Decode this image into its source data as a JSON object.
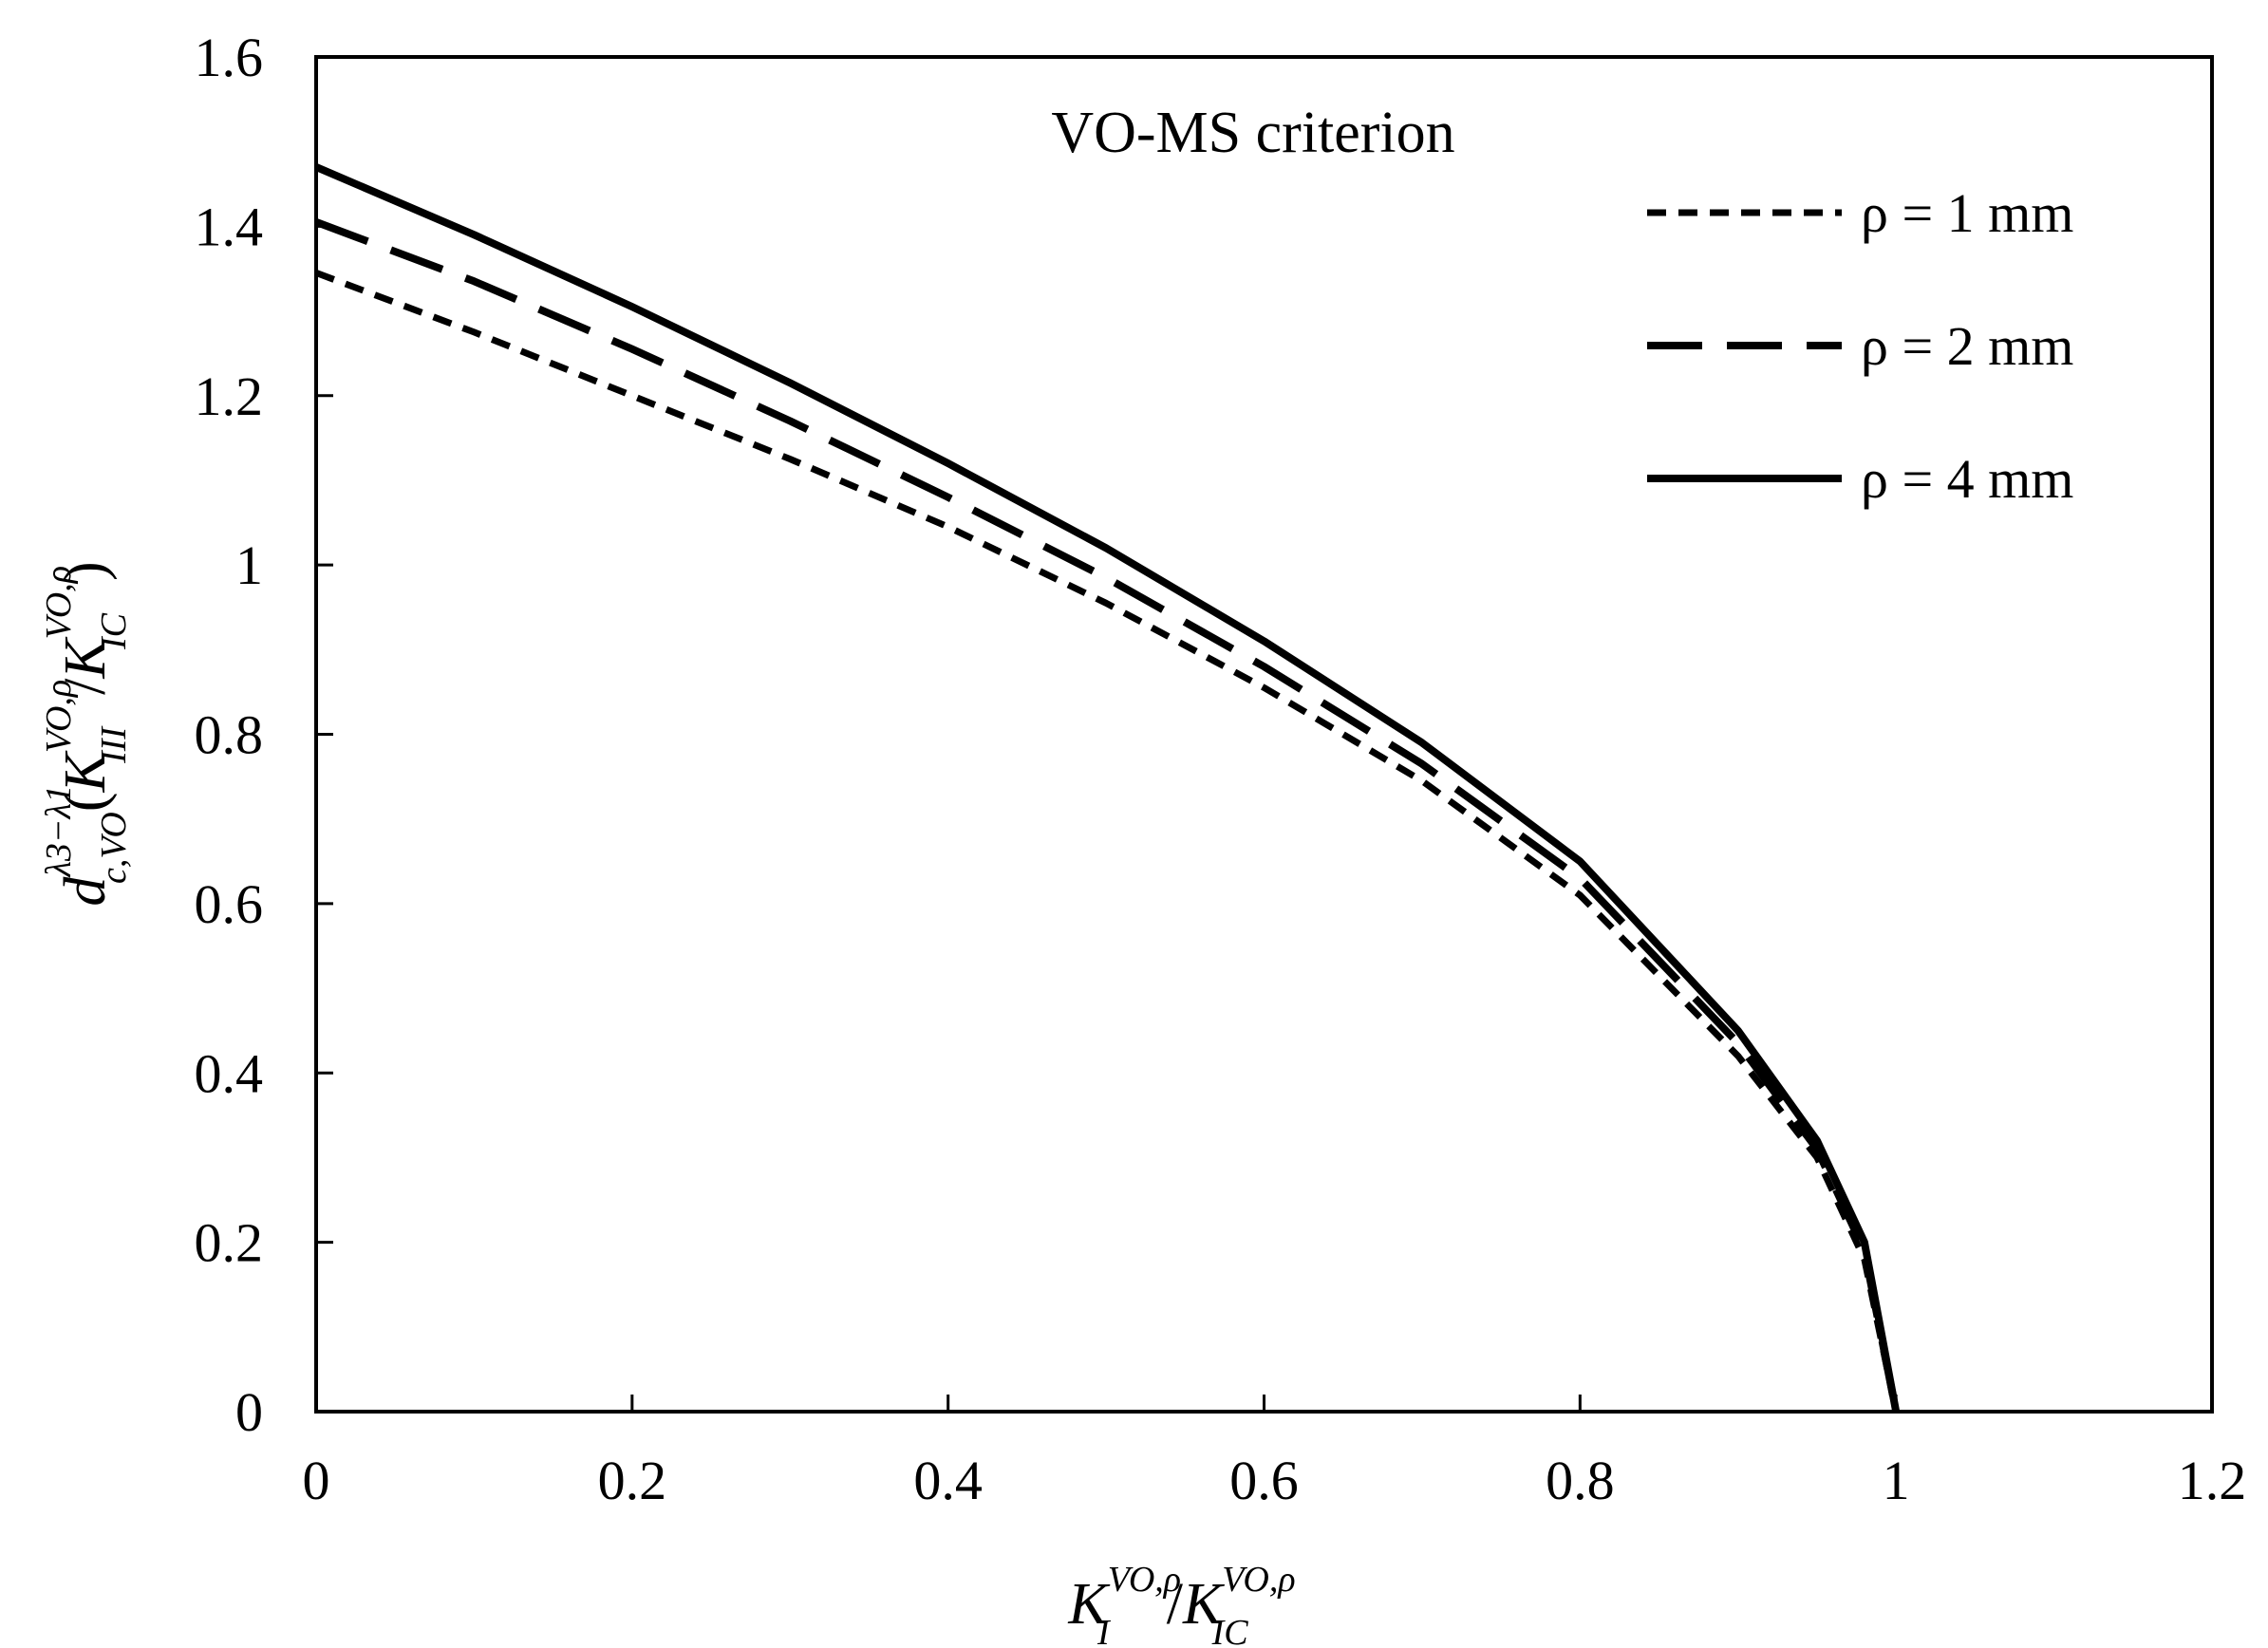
{
  "chart_data": {
    "type": "line",
    "title": "VO-MS criterion",
    "xlabel": {
      "K": "K",
      "K_sub": "I",
      "K_sup": "VO,ρ",
      "slash": "/",
      "K2": "K",
      "K2_sub": "IC",
      "K2_sup": "VO,ρ"
    },
    "ylabel": {
      "d": "d",
      "d_sub": "c,VO",
      "d_sup": "λ3−λ1",
      "paren_open": "(",
      "K": "K",
      "K_sub": "III",
      "K_sup": "VO,ρ",
      "slash": "/",
      "K2": "K",
      "K2_sub": "IC",
      "K2_sup": "VO,ρ",
      "paren_close": ")"
    },
    "xlim": [
      0,
      1.2
    ],
    "ylim": [
      0,
      1.6
    ],
    "xticks": [
      "0",
      "0.2",
      "0.4",
      "0.6",
      "0.8",
      "1",
      "1.2"
    ],
    "yticks": [
      "0",
      "0.2",
      "0.4",
      "0.6",
      "0.8",
      "1",
      "1.2",
      "1.4",
      "1.6"
    ],
    "legend_position": "top-right",
    "series": [
      {
        "name": "ρ = 1 mm",
        "dash": "short-dash",
        "x": [
          0,
          0.1,
          0.2,
          0.3,
          0.4,
          0.5,
          0.6,
          0.7,
          0.8,
          0.9,
          0.95,
          0.98,
          1.0
        ],
        "y": [
          1.345,
          1.275,
          1.2,
          1.125,
          1.045,
          0.955,
          0.855,
          0.745,
          0.61,
          0.42,
          0.3,
          0.18,
          0
        ]
      },
      {
        "name": "ρ = 2 mm",
        "dash": "long-dash",
        "x": [
          0,
          0.1,
          0.2,
          0.3,
          0.4,
          0.5,
          0.6,
          0.7,
          0.8,
          0.9,
          0.95,
          0.98,
          1.0
        ],
        "y": [
          1.405,
          1.335,
          1.255,
          1.17,
          1.08,
          0.985,
          0.88,
          0.765,
          0.63,
          0.435,
          0.31,
          0.19,
          0
        ]
      },
      {
        "name": "ρ = 4 mm",
        "dash": "solid",
        "x": [
          0,
          0.1,
          0.2,
          0.3,
          0.4,
          0.5,
          0.6,
          0.7,
          0.8,
          0.9,
          0.95,
          0.98,
          1.0
        ],
        "y": [
          1.47,
          1.39,
          1.305,
          1.215,
          1.12,
          1.02,
          0.91,
          0.79,
          0.65,
          0.45,
          0.32,
          0.2,
          0
        ]
      }
    ]
  }
}
